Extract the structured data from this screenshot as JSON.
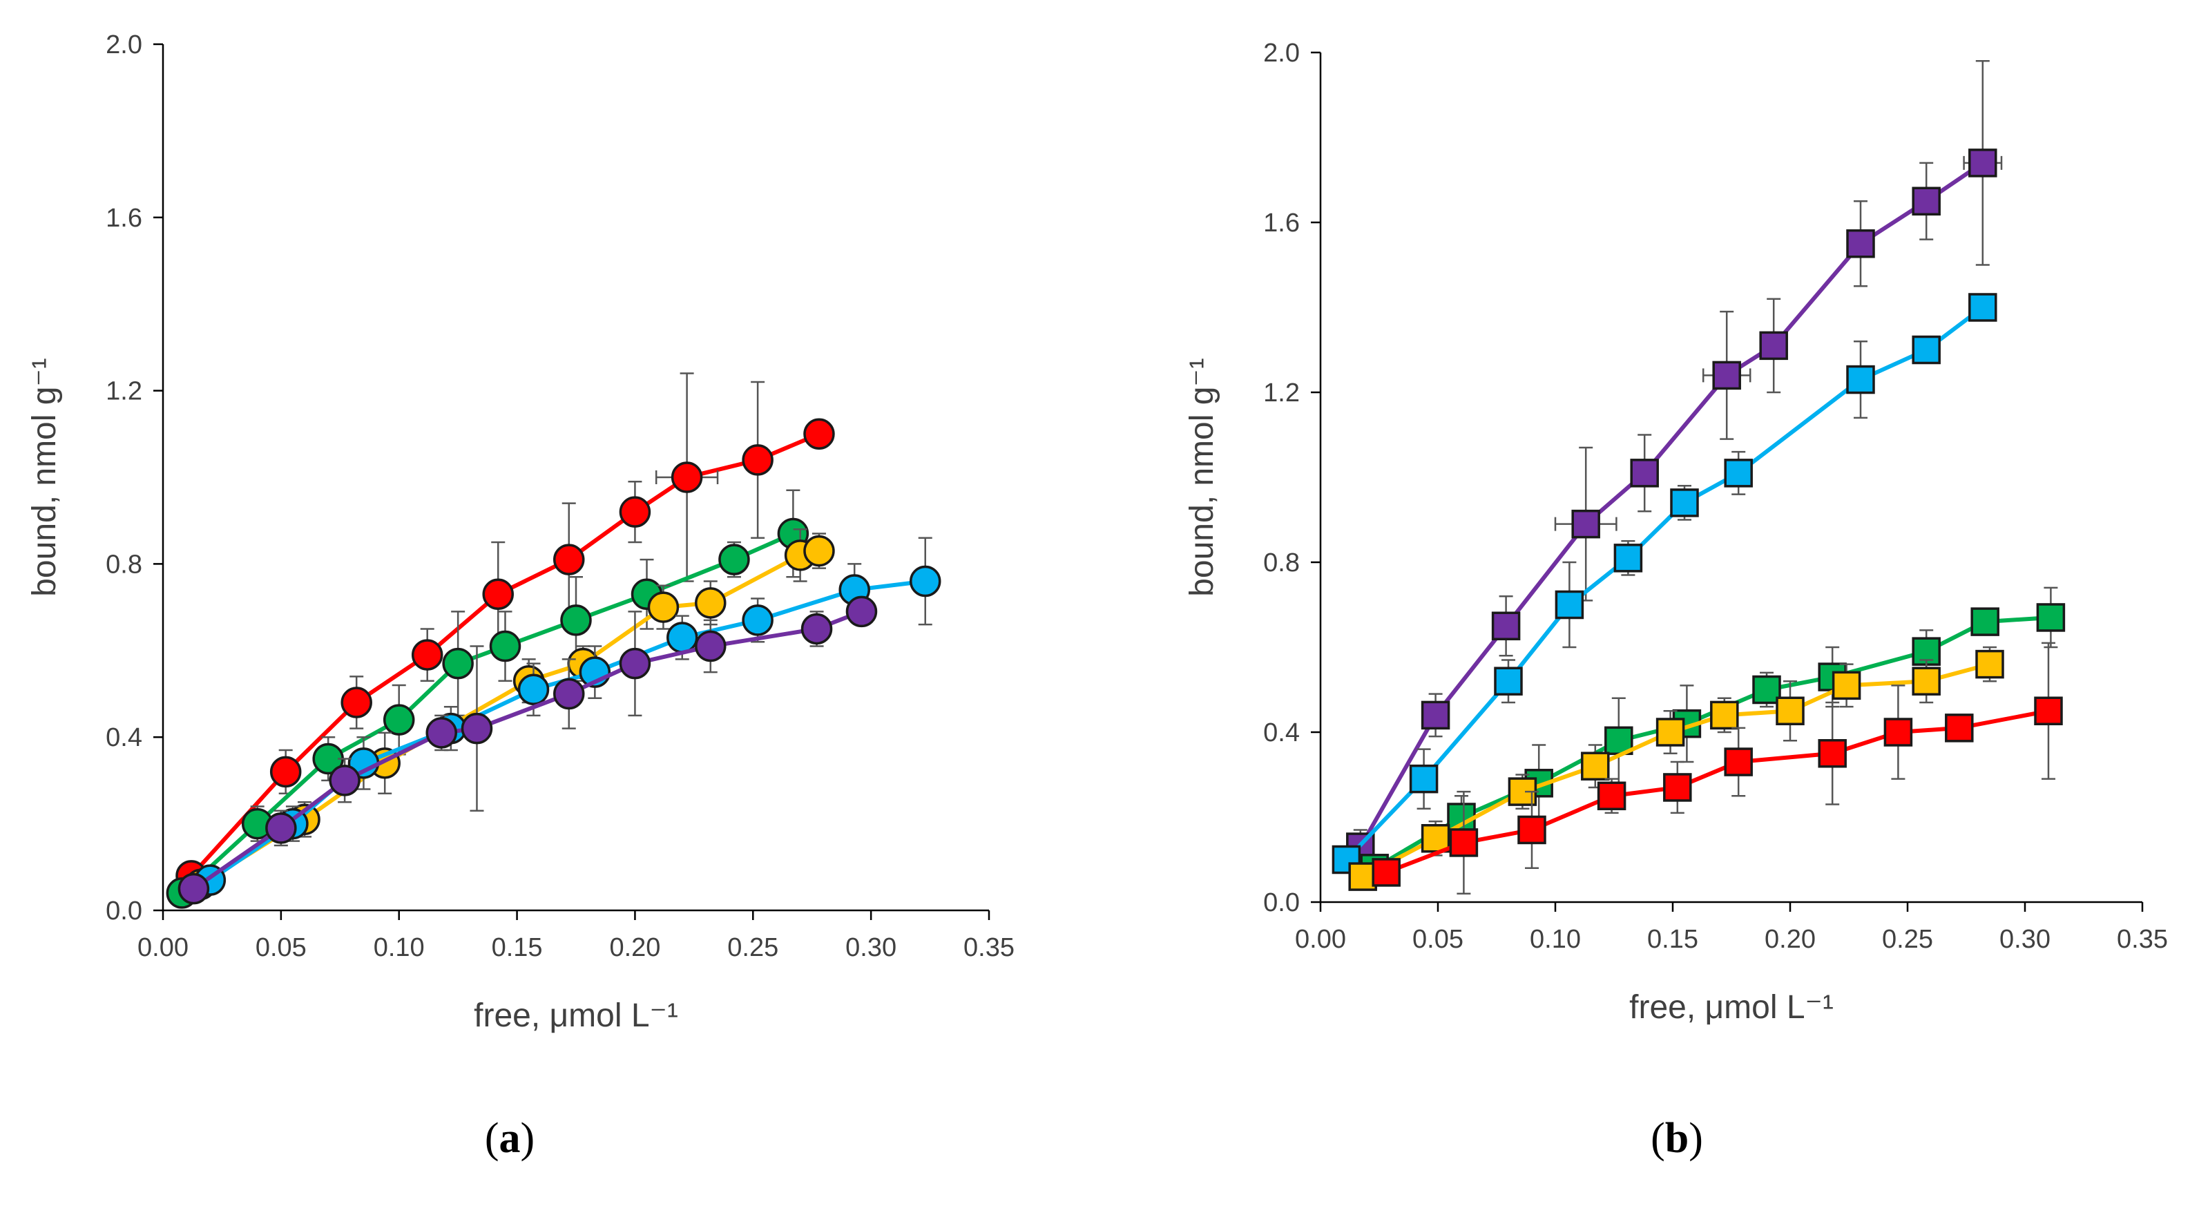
{
  "chart_data": [
    {
      "type": "scatter",
      "panel": "a",
      "panel_label": "(a)",
      "panel_letter": "a",
      "marker": "circle",
      "xlabel": "free, μmol L⁻¹",
      "ylabel": "bound, nmol g⁻¹",
      "xlim": [
        0,
        0.35
      ],
      "ylim": [
        0,
        2.0
      ],
      "xticks": [
        0.0,
        0.05,
        0.1,
        0.15,
        0.2,
        0.25,
        0.3,
        0.35
      ],
      "xtick_labels": [
        "0.00",
        "0.05",
        "0.10",
        "0.15",
        "0.20",
        "0.25",
        "0.30",
        "0.35"
      ],
      "yticks": [
        0.0,
        0.4,
        0.8,
        1.2,
        1.6,
        2.0
      ],
      "ytick_labels": [
        "0.0",
        "0.4",
        "0.8",
        "1.2",
        "1.6",
        "2.0"
      ],
      "series": [
        {
          "name": "red",
          "color": "#ff0000",
          "x": [
            0.012,
            0.052,
            0.082,
            0.112,
            0.142,
            0.172,
            0.2,
            0.222,
            0.252,
            0.278
          ],
          "y": [
            0.08,
            0.32,
            0.48,
            0.59,
            0.73,
            0.81,
            0.92,
            1.0,
            1.04,
            1.1
          ],
          "yerr": [
            0.03,
            0.05,
            0.06,
            0.06,
            0.12,
            0.13,
            0.07,
            0.24,
            0.18,
            0.02
          ],
          "xerr": [
            0,
            0,
            0,
            0,
            0,
            0,
            0,
            0.013,
            0,
            0
          ]
        },
        {
          "name": "green",
          "color": "#00b050",
          "x": [
            0.008,
            0.04,
            0.07,
            0.1,
            0.125,
            0.145,
            0.175,
            0.205,
            0.242,
            0.267
          ],
          "y": [
            0.04,
            0.2,
            0.35,
            0.44,
            0.57,
            0.61,
            0.67,
            0.73,
            0.81,
            0.87
          ],
          "yerr": [
            0.03,
            0.04,
            0.05,
            0.08,
            0.12,
            0.08,
            0.1,
            0.08,
            0.04,
            0.1
          ],
          "xerr": [
            0,
            0,
            0,
            0,
            0,
            0,
            0,
            0,
            0,
            0
          ]
        },
        {
          "name": "yellow",
          "color": "#ffc000",
          "x": [
            0.016,
            0.06,
            0.094,
            0.155,
            0.178,
            0.212,
            0.232,
            0.27,
            0.278
          ],
          "y": [
            0.06,
            0.21,
            0.34,
            0.53,
            0.57,
            0.7,
            0.71,
            0.82,
            0.83
          ],
          "yerr": [
            0.02,
            0.04,
            0.07,
            0.05,
            0.04,
            0.05,
            0.05,
            0.06,
            0.04
          ],
          "xerr": [
            0,
            0,
            0,
            0,
            0,
            0,
            0,
            0,
            0
          ]
        },
        {
          "name": "blue",
          "color": "#00b0f0",
          "x": [
            0.02,
            0.055,
            0.085,
            0.122,
            0.157,
            0.183,
            0.22,
            0.252,
            0.293,
            0.323
          ],
          "y": [
            0.07,
            0.2,
            0.34,
            0.42,
            0.51,
            0.55,
            0.63,
            0.67,
            0.74,
            0.76
          ],
          "yerr": [
            0.03,
            0.04,
            0.06,
            0.05,
            0.06,
            0.06,
            0.05,
            0.05,
            0.06,
            0.1
          ],
          "xerr": [
            0,
            0,
            0,
            0,
            0,
            0,
            0,
            0,
            0,
            0
          ]
        },
        {
          "name": "purple",
          "color": "#7030a0",
          "x": [
            0.013,
            0.05,
            0.077,
            0.118,
            0.133,
            0.172,
            0.2,
            0.232,
            0.277,
            0.296
          ],
          "y": [
            0.05,
            0.19,
            0.3,
            0.41,
            0.42,
            0.5,
            0.57,
            0.61,
            0.65,
            0.69
          ],
          "yerr": [
            0.03,
            0.04,
            0.05,
            0.04,
            0.19,
            0.08,
            0.12,
            0.06,
            0.04,
            0.03
          ],
          "xerr": [
            0,
            0,
            0,
            0,
            0,
            0,
            0,
            0,
            0,
            0
          ]
        }
      ]
    },
    {
      "type": "scatter",
      "panel": "b",
      "panel_label": "(b)",
      "panel_letter": "b",
      "marker": "square",
      "xlabel": "free, μmol L⁻¹",
      "ylabel": "bound, nmol g⁻¹",
      "xlim": [
        0,
        0.35
      ],
      "ylim": [
        0,
        2.0
      ],
      "xticks": [
        0.0,
        0.05,
        0.1,
        0.15,
        0.2,
        0.25,
        0.3,
        0.35
      ],
      "xtick_labels": [
        "0.00",
        "0.05",
        "0.10",
        "0.15",
        "0.20",
        "0.25",
        "0.30",
        "0.35"
      ],
      "yticks": [
        0.0,
        0.4,
        0.8,
        1.2,
        1.6,
        2.0
      ],
      "ytick_labels": [
        "0.0",
        "0.4",
        "0.8",
        "1.2",
        "1.6",
        "2.0"
      ],
      "series": [
        {
          "name": "purple",
          "color": "#7030a0",
          "x": [
            0.017,
            0.049,
            0.079,
            0.113,
            0.138,
            0.173,
            0.193,
            0.23,
            0.258,
            0.282
          ],
          "y": [
            0.13,
            0.44,
            0.65,
            0.89,
            1.01,
            1.24,
            1.31,
            1.55,
            1.65,
            1.74
          ],
          "yerr": [
            0.04,
            0.05,
            0.07,
            0.18,
            0.09,
            0.15,
            0.11,
            0.1,
            0.09,
            0.24
          ],
          "xerr": [
            0,
            0,
            0,
            0.013,
            0,
            0.01,
            0,
            0,
            0,
            0.008
          ]
        },
        {
          "name": "blue",
          "color": "#00b0f0",
          "x": [
            0.011,
            0.044,
            0.08,
            0.106,
            0.131,
            0.155,
            0.178,
            0.23,
            0.258,
            0.282
          ],
          "y": [
            0.1,
            0.29,
            0.52,
            0.7,
            0.81,
            0.94,
            1.01,
            1.23,
            1.3,
            1.4
          ],
          "yerr": [
            0.03,
            0.07,
            0.05,
            0.1,
            0.04,
            0.04,
            0.05,
            0.09,
            0.03,
            0.03
          ],
          "xerr": [
            0,
            0,
            0,
            0,
            0,
            0,
            0,
            0,
            0,
            0
          ]
        },
        {
          "name": "green",
          "color": "#00b050",
          "x": [
            0.023,
            0.06,
            0.093,
            0.127,
            0.156,
            0.19,
            0.218,
            0.258,
            0.283,
            0.311
          ],
          "y": [
            0.08,
            0.2,
            0.28,
            0.38,
            0.42,
            0.5,
            0.53,
            0.59,
            0.66,
            0.67
          ],
          "yerr": [
            0.03,
            0.05,
            0.09,
            0.1,
            0.09,
            0.04,
            0.07,
            0.05,
            0.03,
            0.07
          ],
          "xerr": [
            0,
            0,
            0,
            0,
            0,
            0,
            0,
            0,
            0,
            0
          ]
        },
        {
          "name": "yellow",
          "color": "#ffc000",
          "x": [
            0.018,
            0.049,
            0.086,
            0.117,
            0.149,
            0.172,
            0.2,
            0.224,
            0.258,
            0.285
          ],
          "y": [
            0.06,
            0.15,
            0.26,
            0.32,
            0.4,
            0.44,
            0.45,
            0.51,
            0.52,
            0.56
          ],
          "yerr": [
            0.02,
            0.04,
            0.04,
            0.05,
            0.05,
            0.04,
            0.07,
            0.05,
            0.05,
            0.04
          ],
          "xerr": [
            0,
            0,
            0,
            0,
            0,
            0,
            0,
            0,
            0,
            0
          ]
        },
        {
          "name": "red",
          "color": "#ff0000",
          "x": [
            0.028,
            0.061,
            0.09,
            0.124,
            0.152,
            0.178,
            0.218,
            0.246,
            0.272,
            0.31
          ],
          "y": [
            0.07,
            0.14,
            0.17,
            0.25,
            0.27,
            0.33,
            0.35,
            0.4,
            0.41,
            0.45
          ],
          "yerr": [
            0.03,
            0.12,
            0.09,
            0.04,
            0.06,
            0.08,
            0.12,
            0.11,
            0.03,
            0.16
          ],
          "xerr": [
            0,
            0,
            0,
            0,
            0,
            0,
            0,
            0,
            0,
            0
          ]
        }
      ]
    }
  ]
}
